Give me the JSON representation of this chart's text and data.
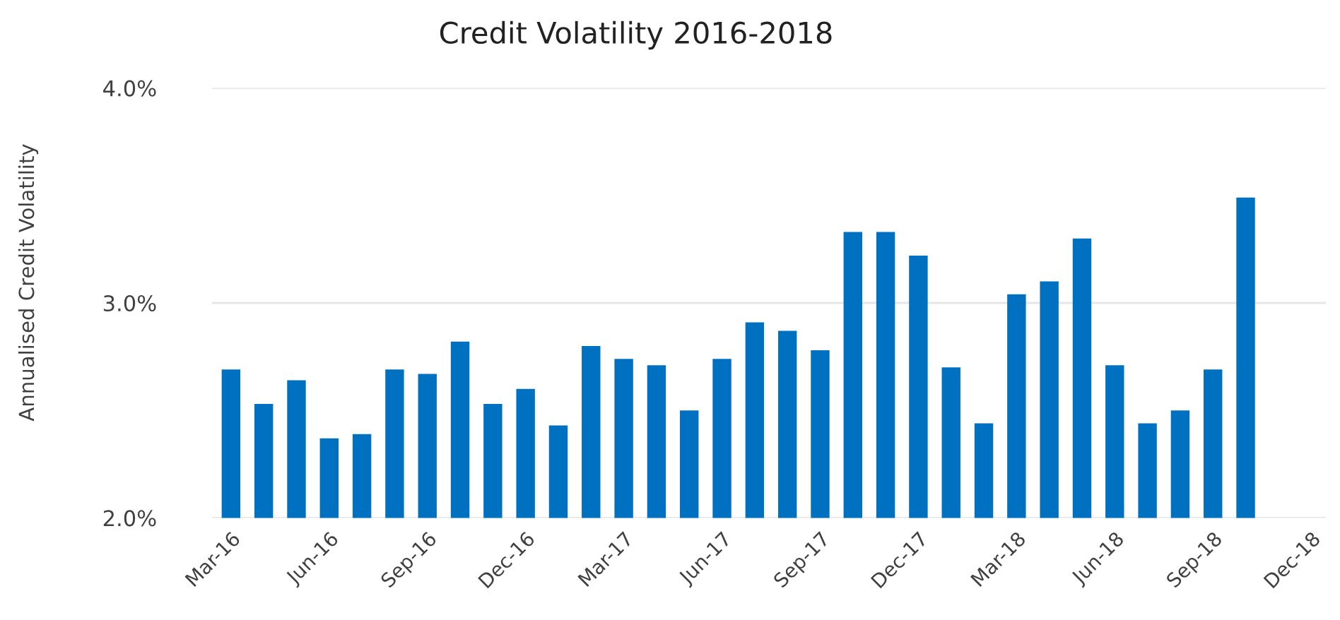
{
  "chart_data": {
    "type": "bar",
    "title": "Credit Volatility 2016-2018",
    "ylabel": "Annualised Credit Volatility",
    "categories": [
      "Mar-16",
      null,
      null,
      "Jun-16",
      null,
      null,
      "Sep-16",
      null,
      null,
      "Dec-16",
      null,
      null,
      "Mar-17",
      null,
      null,
      "Jun-17",
      null,
      null,
      "Sep-17",
      null,
      null,
      "Dec-17",
      null,
      null,
      "Mar-18",
      null,
      null,
      "Jun-18",
      null,
      null,
      "Sep-18",
      null,
      null,
      "Dec-18"
    ],
    "values": [
      2.69,
      2.53,
      2.64,
      2.37,
      2.39,
      2.69,
      2.67,
      2.82,
      2.53,
      2.6,
      2.43,
      2.8,
      2.74,
      2.71,
      2.5,
      2.74,
      2.91,
      2.87,
      2.78,
      3.33,
      3.33,
      3.22,
      2.7,
      2.44,
      3.04,
      3.1,
      3.3,
      2.71,
      2.44,
      2.5,
      2.69,
      3.49,
      null,
      null
    ],
    "color": "#0070c0",
    "ylim": [
      2,
      4
    ],
    "yticks": [
      {
        "value": 2,
        "label": "2.0%"
      },
      {
        "value": 3,
        "label": "3.0%"
      },
      {
        "value": 4,
        "label": "4.0%"
      }
    ],
    "grid": "y",
    "legend": false
  }
}
